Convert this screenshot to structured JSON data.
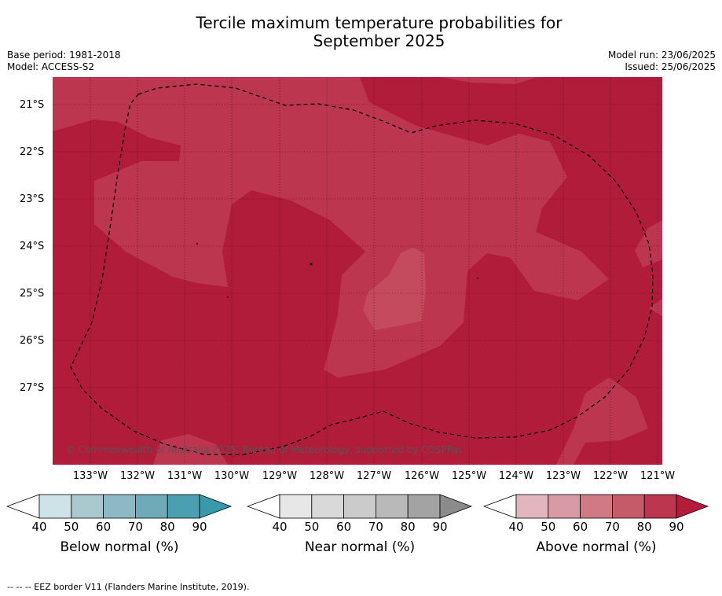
{
  "title_line1": "Tercile maximum temperature probabilities for",
  "title_line2": "September 2025",
  "meta_left": [
    "Base period: 1981-2018",
    "Model: ACCESS-S2"
  ],
  "meta_right": [
    "Model run: 23/06/2025",
    "Issued: 25/06/2025"
  ],
  "lat_labels": [
    "21°S",
    "22°S",
    "23°S",
    "24°S",
    "25°S",
    "26°S",
    "27°S"
  ],
  "lon_labels": [
    "133°W",
    "132°W",
    "131°W",
    "130°W",
    "129°W",
    "128°W",
    "127°W",
    "126°W",
    "125°W",
    "124°W",
    "123°W",
    "122°W",
    "121°W"
  ],
  "copyright": "© Commonwealth of Australia 2025, Bureau of Meteorology, supported by COSPPac",
  "colorbars": [
    {
      "title": "Below normal (%)",
      "ticks": [
        "40",
        "50",
        "60",
        "70",
        "80",
        "90"
      ],
      "colors": [
        "#cde3e8",
        "#a9c9cf",
        "#8cb9c4",
        "#6eaab8",
        "#4aa0b0",
        "#3a98ab"
      ]
    },
    {
      "title": "Near normal (%)",
      "ticks": [
        "40",
        "50",
        "60",
        "70",
        "80",
        "90"
      ],
      "colors": [
        "#e7e7e7",
        "#d9d9d9",
        "#cbcbcb",
        "#b9b9b9",
        "#a3a3a3",
        "#8b8b8b"
      ]
    },
    {
      "title": "Above normal (%)",
      "ticks": [
        "40",
        "50",
        "60",
        "70",
        "80",
        "90"
      ],
      "colors": [
        "#e2b6be",
        "#d89aa4",
        "#d07a85",
        "#c55a68",
        "#bc3650",
        "#b31c3b"
      ]
    }
  ],
  "map_colors": {
    "high": "#b01c3a",
    "mid": "#bc3650",
    "low": "#c44a5e"
  },
  "footer": "--  --  -- EEZ border V11 (Flanders Marine Institute, 2019)."
}
